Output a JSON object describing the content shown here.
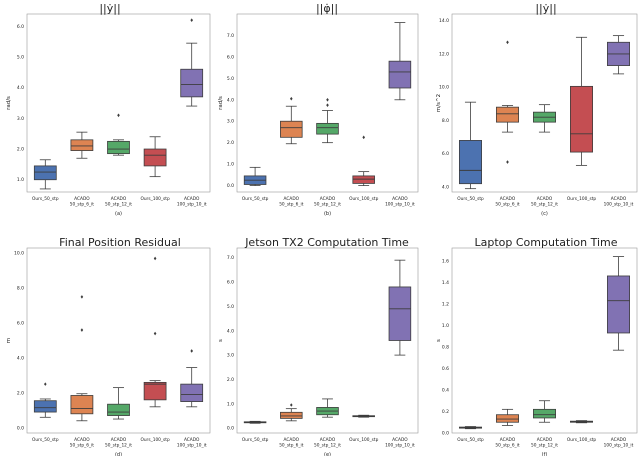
{
  "chart_data": [
    {
      "type": "box",
      "title": "||ẏ||",
      "subtitle": "(a)",
      "xlabel": "",
      "ylabel": "rad/s",
      "ylim": [
        0.6,
        6.4
      ],
      "yticks": [
        1.0,
        2.0,
        3.0,
        4.0,
        5.0,
        6.0
      ],
      "ytick_labels": [
        "1.0",
        "2.0",
        "3.0",
        "4.0",
        "5.0",
        "6.0"
      ],
      "categories": [
        "Ours_50_stp",
        "ACADO\n50_stp_6_it",
        "ACADO\n50_stp_12_it",
        "Ours_100_stp",
        "ACADO\n100_stp_10_it"
      ],
      "boxes": [
        {
          "min": 0.7,
          "q1": 1.0,
          "median": 1.25,
          "q3": 1.45,
          "max": 1.65,
          "outliers": []
        },
        {
          "min": 1.7,
          "q1": 1.95,
          "median": 2.1,
          "q3": 2.3,
          "max": 2.55,
          "outliers": []
        },
        {
          "min": 1.8,
          "q1": 1.85,
          "median": 2.0,
          "q3": 2.25,
          "max": 2.3,
          "outliers": [
            3.1
          ]
        },
        {
          "min": 1.1,
          "q1": 1.45,
          "median": 1.8,
          "q3": 2.0,
          "max": 2.4,
          "outliers": []
        },
        {
          "min": 3.4,
          "q1": 3.7,
          "median": 4.1,
          "q3": 4.6,
          "max": 5.45,
          "outliers": [
            6.2
          ]
        }
      ]
    },
    {
      "type": "box",
      "title": "||φ̇||",
      "subtitle": "(b)",
      "xlabel": "",
      "ylabel": "rad/s",
      "ylim": [
        -0.3,
        8.0
      ],
      "yticks": [
        0.0,
        1.0,
        2.0,
        3.0,
        4.0,
        5.0,
        6.0,
        7.0
      ],
      "ytick_labels": [
        "0.0",
        "1.0",
        "2.0",
        "3.0",
        "4.0",
        "5.0",
        "6.0",
        "7.0"
      ],
      "categories": [
        "Ours_50_stp",
        "ACADO\n50_stp_6_it",
        "ACADO\n50_stp_12_it",
        "Ours_100_stp",
        "ACADO\n100_stp_10_it"
      ],
      "boxes": [
        {
          "min": 0.0,
          "q1": 0.05,
          "median": 0.25,
          "q3": 0.45,
          "max": 0.85,
          "outliers": []
        },
        {
          "min": 1.95,
          "q1": 2.25,
          "median": 2.7,
          "q3": 3.0,
          "max": 3.7,
          "outliers": [
            4.05
          ]
        },
        {
          "min": 2.0,
          "q1": 2.4,
          "median": 2.7,
          "q3": 2.9,
          "max": 3.5,
          "outliers": [
            3.75,
            4.0
          ]
        },
        {
          "min": 0.0,
          "q1": 0.1,
          "median": 0.3,
          "q3": 0.45,
          "max": 0.65,
          "outliers": [
            2.25
          ]
        },
        {
          "min": 4.0,
          "q1": 4.55,
          "median": 5.3,
          "q3": 5.8,
          "max": 7.6,
          "outliers": []
        }
      ]
    },
    {
      "type": "box",
      "title": "||ẏ||",
      "subtitle": "(c)",
      "xlabel": "",
      "ylabel": "m/s^2",
      "ylim": [
        3.7,
        14.4
      ],
      "yticks": [
        4.0,
        6.0,
        8.0,
        10.0,
        12.0,
        14.0
      ],
      "ytick_labels": [
        "4.0",
        "6.0",
        "8.0",
        "10.0",
        "12.0",
        "14.0"
      ],
      "categories": [
        "Ours_50_stp",
        "ACADO\n50_stp_6_it",
        "ACADO\n50_stp_12_it",
        "Ours_100_stp",
        "ACADO\n100_stp_10_it"
      ],
      "boxes": [
        {
          "min": 3.9,
          "q1": 4.2,
          "median": 5.0,
          "q3": 6.8,
          "max": 9.1,
          "outliers": []
        },
        {
          "min": 7.3,
          "q1": 7.9,
          "median": 8.4,
          "q3": 8.8,
          "max": 8.9,
          "outliers": [
            12.7,
            5.5
          ]
        },
        {
          "min": 7.3,
          "q1": 7.9,
          "median": 8.2,
          "q3": 8.5,
          "max": 8.95,
          "outliers": []
        },
        {
          "min": 5.3,
          "q1": 6.1,
          "median": 7.2,
          "q3": 10.05,
          "max": 13.0,
          "outliers": []
        },
        {
          "min": 10.8,
          "q1": 11.3,
          "median": 12.0,
          "q3": 12.7,
          "max": 13.1,
          "outliers": []
        }
      ]
    },
    {
      "type": "box",
      "title": "Final Position Residual",
      "subtitle": "(d)",
      "xlabel": "",
      "ylabel": "m",
      "ylim": [
        -0.3,
        10.3
      ],
      "yticks": [
        0.0,
        2.0,
        4.0,
        6.0,
        8.0,
        10.0
      ],
      "ytick_labels": [
        "0.0",
        "2.0",
        "4.0",
        "6.0",
        "8.0",
        "10.0"
      ],
      "categories": [
        "Ours_50_stp",
        "ACADO\n50_stp_6_it",
        "ACADO\n50_stp_12_it",
        "Ours_100_stp",
        "ACADO\n100_stp_10_it"
      ],
      "boxes": [
        {
          "min": 0.6,
          "q1": 0.9,
          "median": 1.15,
          "q3": 1.55,
          "max": 1.65,
          "outliers": [
            2.5
          ]
        },
        {
          "min": 0.4,
          "q1": 0.8,
          "median": 1.1,
          "q3": 1.85,
          "max": 1.95,
          "outliers": [
            5.6,
            7.5
          ]
        },
        {
          "min": 0.5,
          "q1": 0.7,
          "median": 0.9,
          "q3": 1.35,
          "max": 2.3,
          "outliers": []
        },
        {
          "min": 1.2,
          "q1": 1.6,
          "median": 2.5,
          "q3": 2.6,
          "max": 2.7,
          "outliers": [
            5.4,
            9.7
          ]
        },
        {
          "min": 1.2,
          "q1": 1.5,
          "median": 1.9,
          "q3": 2.5,
          "max": 3.45,
          "outliers": [
            4.4
          ]
        }
      ]
    },
    {
      "type": "box",
      "title": "Jetson TX2 Computation Time",
      "subtitle": "(e)",
      "xlabel": "",
      "ylabel": "s",
      "ylim": [
        -0.2,
        7.4
      ],
      "yticks": [
        0.0,
        1.0,
        2.0,
        3.0,
        4.0,
        5.0,
        6.0,
        7.0
      ],
      "ytick_labels": [
        "0.0",
        "1.0",
        "2.0",
        "3.0",
        "4.0",
        "5.0",
        "6.0",
        "7.0"
      ],
      "categories": [
        "Ours_50_stp",
        "ACADO\n50_stp_6_it",
        "ACADO\n50_stp_12_it",
        "Ours_100_stp",
        "ACADO\n100_stp_10_it"
      ],
      "boxes": [
        {
          "min": 0.2,
          "q1": 0.22,
          "median": 0.24,
          "q3": 0.26,
          "max": 0.28,
          "outliers": []
        },
        {
          "min": 0.3,
          "q1": 0.4,
          "median": 0.5,
          "q3": 0.65,
          "max": 0.8,
          "outliers": [
            0.95
          ]
        },
        {
          "min": 0.45,
          "q1": 0.55,
          "median": 0.7,
          "q3": 0.85,
          "max": 1.2,
          "outliers": []
        },
        {
          "min": 0.45,
          "q1": 0.47,
          "median": 0.49,
          "q3": 0.51,
          "max": 0.53,
          "outliers": []
        },
        {
          "min": 3.0,
          "q1": 3.6,
          "median": 4.9,
          "q3": 5.8,
          "max": 6.9,
          "outliers": []
        }
      ]
    },
    {
      "type": "box",
      "title": "Laptop Computation Time",
      "subtitle": "(f)",
      "xlabel": "",
      "ylabel": "s",
      "ylim": [
        0.0,
        1.72
      ],
      "yticks": [
        0.0,
        0.2,
        0.4,
        0.6,
        0.8,
        1.0,
        1.2,
        1.4,
        1.6
      ],
      "ytick_labels": [
        "0.0",
        "0.2",
        "0.4",
        "0.6",
        "0.8",
        "1.0",
        "1.2",
        "1.4",
        "1.6"
      ],
      "categories": [
        "Ours_50_stp",
        "ACADO\n50_stp_6_it",
        "ACADO\n50_stp_12_it",
        "Ours_100_stp",
        "ACADO\n100_stp_10_it"
      ],
      "boxes": [
        {
          "min": 0.04,
          "q1": 0.045,
          "median": 0.05,
          "q3": 0.055,
          "max": 0.06,
          "outliers": []
        },
        {
          "min": 0.07,
          "q1": 0.1,
          "median": 0.13,
          "q3": 0.17,
          "max": 0.22,
          "outliers": []
        },
        {
          "min": 0.1,
          "q1": 0.14,
          "median": 0.17,
          "q3": 0.22,
          "max": 0.3,
          "outliers": []
        },
        {
          "min": 0.095,
          "q1": 0.1,
          "median": 0.105,
          "q3": 0.11,
          "max": 0.115,
          "outliers": []
        },
        {
          "min": 0.77,
          "q1": 0.93,
          "median": 1.23,
          "q3": 1.46,
          "max": 1.64,
          "outliers": []
        }
      ]
    }
  ],
  "colors": [
    "#4c72b0",
    "#dd8452",
    "#55a868",
    "#c44e52",
    "#8172b3"
  ]
}
